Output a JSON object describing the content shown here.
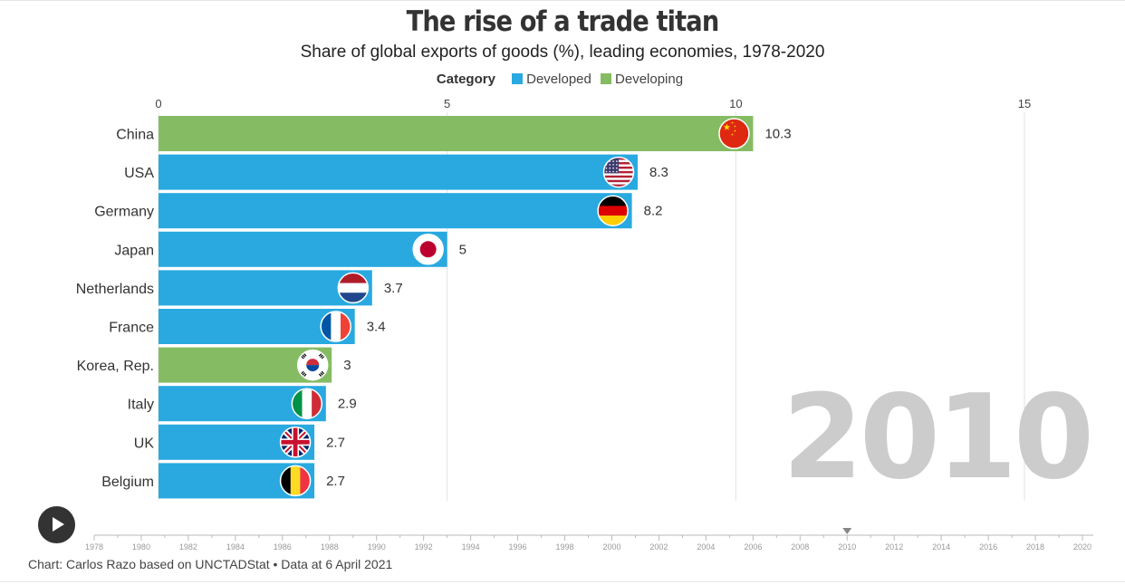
{
  "title": "The rise of a trade titan",
  "subtitle": "Share of global exports of goods (%), leading economies, 1978-2020",
  "legend": {
    "title": "Category",
    "items": [
      {
        "label": "Developed",
        "color": "#29a9e0"
      },
      {
        "label": "Developing",
        "color": "#85bc63"
      }
    ]
  },
  "current_year": "2010",
  "source": "Chart: Carlos Razo based on UNCTADStat • Data at 6 April 2021",
  "timeline": {
    "years": [
      "1978",
      "1980",
      "1982",
      "1984",
      "1986",
      "1988",
      "1990",
      "1992",
      "1994",
      "1996",
      "1998",
      "2000",
      "2002",
      "2004",
      "2006",
      "2008",
      "2010",
      "2012",
      "2014",
      "2016",
      "2018",
      "2020"
    ],
    "selected": "2010"
  },
  "controls": {
    "play_icon": "play-icon"
  },
  "chart_data": {
    "type": "bar",
    "orientation": "horizontal",
    "xlim": [
      0,
      15
    ],
    "xticks": [
      0,
      5,
      10,
      15
    ],
    "grid": true,
    "legend_position": "top-center",
    "categories": [
      "China",
      "USA",
      "Germany",
      "Japan",
      "Netherlands",
      "France",
      "Korea, Rep.",
      "Italy",
      "UK",
      "Belgium"
    ],
    "values": [
      10.3,
      8.3,
      8.2,
      5,
      3.7,
      3.4,
      3,
      2.9,
      2.7,
      2.7
    ],
    "value_labels": [
      "10.3",
      "8.3",
      "8.2",
      "5",
      "3.7",
      "3.4",
      "3",
      "2.9",
      "2.7",
      "2.7"
    ],
    "bar_category": [
      "Developing",
      "Developed",
      "Developed",
      "Developed",
      "Developed",
      "Developed",
      "Developing",
      "Developed",
      "Developed",
      "Developed"
    ],
    "flag_icons": [
      "china-flag-icon",
      "usa-flag-icon",
      "germany-flag-icon",
      "japan-flag-icon",
      "netherlands-flag-icon",
      "france-flag-icon",
      "korea-flag-icon",
      "italy-flag-icon",
      "uk-flag-icon",
      "belgium-flag-icon"
    ]
  }
}
